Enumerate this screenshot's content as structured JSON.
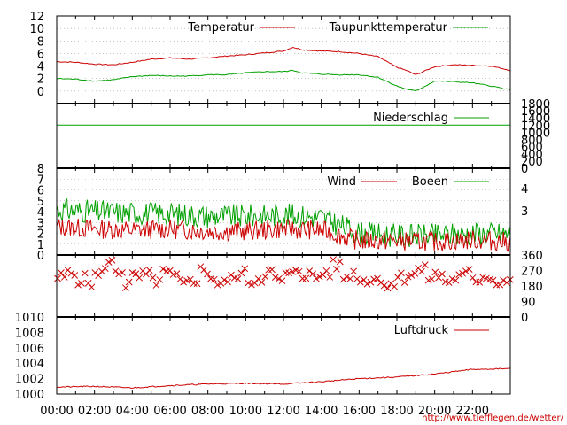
{
  "source_url": "http://www.tiefflegen.de/wetter/",
  "colors": {
    "red": "#cc0000",
    "green": "#00a000",
    "grid": "#a0a0a0",
    "axis": "#000000"
  },
  "chart_data": [
    {
      "type": "line",
      "ylim": [
        -2,
        12
      ],
      "yticks": [
        0,
        2,
        4,
        6,
        8,
        10,
        12
      ],
      "grid": true,
      "x": [
        "00:00",
        "01:00",
        "02:00",
        "03:00",
        "04:00",
        "05:00",
        "06:00",
        "07:00",
        "08:00",
        "09:00",
        "10:00",
        "11:00",
        "12:00",
        "12:30",
        "13:00",
        "14:00",
        "15:00",
        "16:00",
        "17:00",
        "18:00",
        "18:30",
        "19:00",
        "20:00",
        "21:00",
        "22:00",
        "23:00",
        "24:00"
      ],
      "series": [
        {
          "name": "Temperatur",
          "color": "#cc0000",
          "values": [
            4.7,
            4.6,
            4.3,
            4.2,
            4.6,
            5.1,
            5.3,
            5.1,
            5.3,
            5.6,
            5.8,
            6.1,
            6.4,
            7.0,
            6.6,
            6.4,
            6.3,
            6.0,
            5.5,
            3.8,
            3.3,
            2.6,
            3.9,
            4.2,
            4.1,
            4.0,
            3.3
          ]
        },
        {
          "name": "Taupunkttemperatur",
          "color": "#00a000",
          "values": [
            2.0,
            1.9,
            1.6,
            1.8,
            2.3,
            2.5,
            2.4,
            2.4,
            2.6,
            2.6,
            2.9,
            3.1,
            3.1,
            3.3,
            2.9,
            2.7,
            2.6,
            2.6,
            2.2,
            0.8,
            0.3,
            0.0,
            1.6,
            1.5,
            1.3,
            0.8,
            0.2
          ]
        }
      ]
    },
    {
      "type": "line",
      "ylim": [
        0,
        1800
      ],
      "yticks": [
        0,
        200,
        400,
        600,
        800,
        1000,
        1200,
        1400,
        1600,
        1800
      ],
      "series": [
        {
          "name": "Niederschlag",
          "color": "#00a000",
          "values": [
            1200,
            1200
          ]
        }
      ]
    },
    {
      "type": "line",
      "ylim": [
        0,
        8
      ],
      "yticks": [
        0,
        1,
        2,
        3,
        4,
        5,
        6,
        7,
        8
      ],
      "secondary_ticks": [
        "3",
        "4"
      ],
      "grid": true,
      "x": [
        "00:00",
        "02:00",
        "04:00",
        "06:00",
        "08:00",
        "10:00",
        "12:00",
        "14:00",
        "16:00",
        "18:00",
        "20:00",
        "22:00",
        "24:00"
      ],
      "series": [
        {
          "name": "Wind",
          "color": "#cc0000",
          "values": [
            2.6,
            2.4,
            2.3,
            2.4,
            2.2,
            2.2,
            2.4,
            2.3,
            1.3,
            1.3,
            1.2,
            1.4,
            1.2
          ]
        },
        {
          "name": "Boeen",
          "color": "#00a000",
          "values": [
            4.2,
            4.0,
            3.9,
            3.8,
            3.6,
            3.6,
            3.7,
            3.5,
            2.0,
            1.8,
            1.8,
            2.0,
            2.0
          ]
        }
      ]
    },
    {
      "type": "scatter",
      "ylim": [
        0,
        360
      ],
      "yticks": [
        0,
        90,
        180,
        270,
        360
      ],
      "marker": "x",
      "color": "#cc0000",
      "hours": [
        0,
        0.5,
        1,
        1.5,
        2,
        2.5,
        3,
        3.5,
        4,
        4.5,
        5,
        5.5,
        6,
        6.5,
        7,
        7.5,
        8,
        8.5,
        9,
        9.5,
        10,
        10.5,
        11,
        11.5,
        12,
        12.5,
        13,
        13.5,
        14,
        14.5,
        15,
        15.5,
        16,
        16.5,
        17,
        17.5,
        18,
        18.5,
        19,
        19.5,
        20,
        20.5,
        21,
        21.5,
        22,
        22.5,
        23,
        23.5
      ],
      "values": [
        230,
        250,
        220,
        200,
        240,
        310,
        270,
        190,
        230,
        240,
        210,
        250,
        230,
        190,
        220,
        270,
        230,
        190,
        220,
        250,
        210,
        230,
        260,
        210,
        240,
        280,
        250,
        230,
        260,
        300,
        230,
        250,
        210,
        230,
        190,
        200,
        230,
        250,
        270,
        230,
        240,
        210,
        230,
        250,
        220,
        240,
        210,
        230
      ]
    },
    {
      "type": "line",
      "ylim": [
        1000,
        1010
      ],
      "yticks": [
        1000,
        1002,
        1004,
        1006,
        1008,
        1010
      ],
      "xticks": [
        "00:00",
        "02:00",
        "04:00",
        "06:00",
        "08:00",
        "10:00",
        "12:00",
        "14:00",
        "16:00",
        "18:00",
        "20:00",
        "22:00"
      ],
      "x": [
        "00:00",
        "02:00",
        "04:00",
        "06:00",
        "08:00",
        "10:00",
        "12:00",
        "14:00",
        "16:00",
        "18:00",
        "20:00",
        "22:00",
        "24:00"
      ],
      "series": [
        {
          "name": "Luftdruck",
          "color": "#cc0000",
          "values": [
            1000.9,
            1001.0,
            1000.8,
            1001.1,
            1001.3,
            1001.4,
            1001.3,
            1001.6,
            1002.0,
            1002.2,
            1002.6,
            1003.2,
            1003.3
          ]
        }
      ]
    }
  ]
}
